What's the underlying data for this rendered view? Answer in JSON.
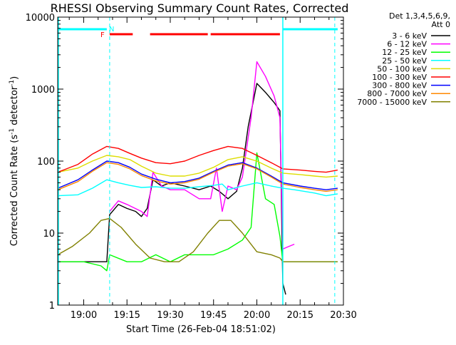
{
  "chart_data": {
    "type": "line",
    "title": "RHESSI Observing Summary Count Rates, Corrected",
    "xlabel": "Start Time (26-Feb-04 18:51:02)",
    "ylabel": "Corrected Count Rate (s⁻¹ detector⁻¹)",
    "ylabel_parts": {
      "prefix": "Corrected Count Rate (s",
      "exp1": "-1",
      "middle": " detector",
      "exp2": "-1",
      "suffix": ")"
    },
    "yscale": "log",
    "xlim": [
      "18:51",
      "20:30"
    ],
    "ylim": [
      1,
      10000
    ],
    "x_ticks": [
      "19:00",
      "19:15",
      "19:30",
      "19:45",
      "20:00",
      "20:15",
      "20:30"
    ],
    "y_ticks": [
      "1",
      "10",
      "100",
      "1000",
      "10000"
    ],
    "detector_info": [
      "Det 1,3,4,5,6,9,",
      "Att 0"
    ],
    "flags": {
      "F": "F",
      "N": "N"
    },
    "series": [
      {
        "name": "3 - 6 keV",
        "color": "#000000",
        "x": [
          "18:51",
          "19:00",
          "19:06",
          "19:08",
          "19:09",
          "19:12",
          "19:15",
          "19:18",
          "19:20",
          "19:22",
          "19:24",
          "19:27",
          "19:30",
          "19:35",
          "19:40",
          "19:44",
          "19:47",
          "19:50",
          "19:53",
          "19:55",
          "19:57",
          "20:00",
          "20:03",
          "20:06",
          "20:08",
          "20:09",
          "20:10"
        ],
        "y": [
          4,
          4,
          4,
          4,
          18,
          25,
          22,
          20,
          17,
          22,
          55,
          45,
          50,
          45,
          40,
          45,
          38,
          30,
          38,
          80,
          300,
          1200,
          900,
          650,
          500,
          2,
          1.4
        ]
      },
      {
        "name": "6 - 12 keV",
        "color": "#ff00ff",
        "x": [
          "19:09",
          "19:12",
          "19:15",
          "19:20",
          "19:22",
          "19:24",
          "19:27",
          "19:30",
          "19:35",
          "19:40",
          "19:44",
          "19:46",
          "19:48",
          "19:50",
          "19:53",
          "19:55",
          "19:58",
          "20:00",
          "20:03",
          "20:06",
          "20:08",
          "20:09",
          "20:11",
          "20:13"
        ],
        "y": [
          20,
          28,
          25,
          20,
          17,
          70,
          45,
          40,
          40,
          30,
          30,
          80,
          20,
          45,
          40,
          60,
          400,
          2400,
          1500,
          800,
          400,
          6,
          6.5,
          7
        ]
      },
      {
        "name": "12 - 25 keV",
        "color": "#00ff00",
        "x": [
          "18:51",
          "19:00",
          "19:06",
          "19:08",
          "19:09",
          "19:15",
          "19:20",
          "19:25",
          "19:30",
          "19:35",
          "19:40",
          "19:45",
          "19:50",
          "19:55",
          "19:58",
          "20:00",
          "20:03",
          "20:06",
          "20:08",
          "20:09",
          "20:12",
          "20:18",
          "20:24",
          "20:28"
        ],
        "y": [
          4,
          4,
          3.5,
          3,
          5,
          4,
          4,
          5,
          4,
          5,
          5,
          5,
          6,
          8,
          12,
          130,
          30,
          25,
          9,
          4,
          4,
          4,
          4,
          4
        ]
      },
      {
        "name": "25 - 50 keV",
        "color": "#00ffff",
        "x": [
          "18:51",
          "18:58",
          "19:03",
          "19:08",
          "19:12",
          "19:16",
          "19:20",
          "19:25",
          "19:30",
          "19:35",
          "19:40",
          "19:45",
          "19:48",
          "19:50",
          "19:55",
          "20:00",
          "20:05",
          "20:09",
          "20:13",
          "20:20",
          "20:24",
          "20:28"
        ],
        "y": [
          33,
          34,
          42,
          55,
          50,
          46,
          43,
          44,
          42,
          42,
          44,
          46,
          48,
          40,
          45,
          50,
          45,
          42,
          40,
          36,
          33,
          35
        ]
      },
      {
        "name": "50 - 100 keV",
        "color": "#dddd00",
        "x": [
          "18:51",
          "18:58",
          "19:03",
          "19:08",
          "19:12",
          "19:16",
          "19:20",
          "19:25",
          "19:30",
          "19:35",
          "19:40",
          "19:45",
          "19:50",
          "19:55",
          "20:00",
          "20:05",
          "20:09",
          "20:15",
          "20:20",
          "20:24",
          "20:28"
        ],
        "y": [
          70,
          80,
          100,
          120,
          115,
          105,
          85,
          68,
          62,
          62,
          68,
          82,
          105,
          115,
          100,
          80,
          68,
          65,
          62,
          60,
          62
        ]
      },
      {
        "name": "100 - 300 keV",
        "color": "#ff0000",
        "x": [
          "18:51",
          "18:58",
          "19:03",
          "19:08",
          "19:12",
          "19:16",
          "19:20",
          "19:25",
          "19:30",
          "19:35",
          "19:40",
          "19:45",
          "19:50",
          "19:55",
          "20:00",
          "20:05",
          "20:09",
          "20:15",
          "20:20",
          "20:24",
          "20:28"
        ],
        "y": [
          70,
          90,
          125,
          160,
          150,
          128,
          110,
          95,
          92,
          100,
          120,
          140,
          160,
          150,
          120,
          95,
          78,
          75,
          72,
          70,
          75
        ]
      },
      {
        "name": "300 - 800 keV",
        "color": "#0000ff",
        "x": [
          "18:51",
          "18:58",
          "19:03",
          "19:08",
          "19:12",
          "19:16",
          "19:20",
          "19:25",
          "19:30",
          "19:35",
          "19:40",
          "19:45",
          "19:50",
          "19:55",
          "20:00",
          "20:05",
          "20:09",
          "20:15",
          "20:20",
          "20:24",
          "20:28"
        ],
        "y": [
          42,
          55,
          75,
          100,
          95,
          82,
          66,
          56,
          50,
          52,
          58,
          72,
          88,
          95,
          80,
          62,
          50,
          45,
          42,
          40,
          42
        ]
      },
      {
        "name": "800 - 7000 keV",
        "color": "#ff8800",
        "x": [
          "18:51",
          "18:58",
          "19:03",
          "19:08",
          "19:12",
          "19:16",
          "19:20",
          "19:25",
          "19:30",
          "19:35",
          "19:40",
          "19:45",
          "19:50",
          "19:55",
          "20:00",
          "20:05",
          "20:09",
          "20:15",
          "20:20",
          "20:24",
          "20:28"
        ],
        "y": [
          40,
          52,
          72,
          95,
          90,
          78,
          63,
          53,
          48,
          50,
          56,
          70,
          85,
          92,
          78,
          60,
          48,
          43,
          40,
          38,
          40
        ]
      },
      {
        "name": "7000 - 15000 keV",
        "color": "#808000",
        "x": [
          "18:51",
          "18:56",
          "19:02",
          "19:06",
          "19:09",
          "19:13",
          "19:18",
          "19:23",
          "19:28",
          "19:33",
          "19:38",
          "19:43",
          "19:47",
          "19:51",
          "19:55",
          "20:00",
          "20:05",
          "20:08",
          "20:09",
          "20:14",
          "20:20",
          "20:28"
        ],
        "y": [
          5,
          6.5,
          10,
          15,
          16,
          12,
          7,
          4.5,
          4,
          4,
          5.5,
          10,
          15,
          15,
          10,
          5.5,
          5,
          4.5,
          4,
          4,
          4,
          4
        ]
      }
    ]
  }
}
